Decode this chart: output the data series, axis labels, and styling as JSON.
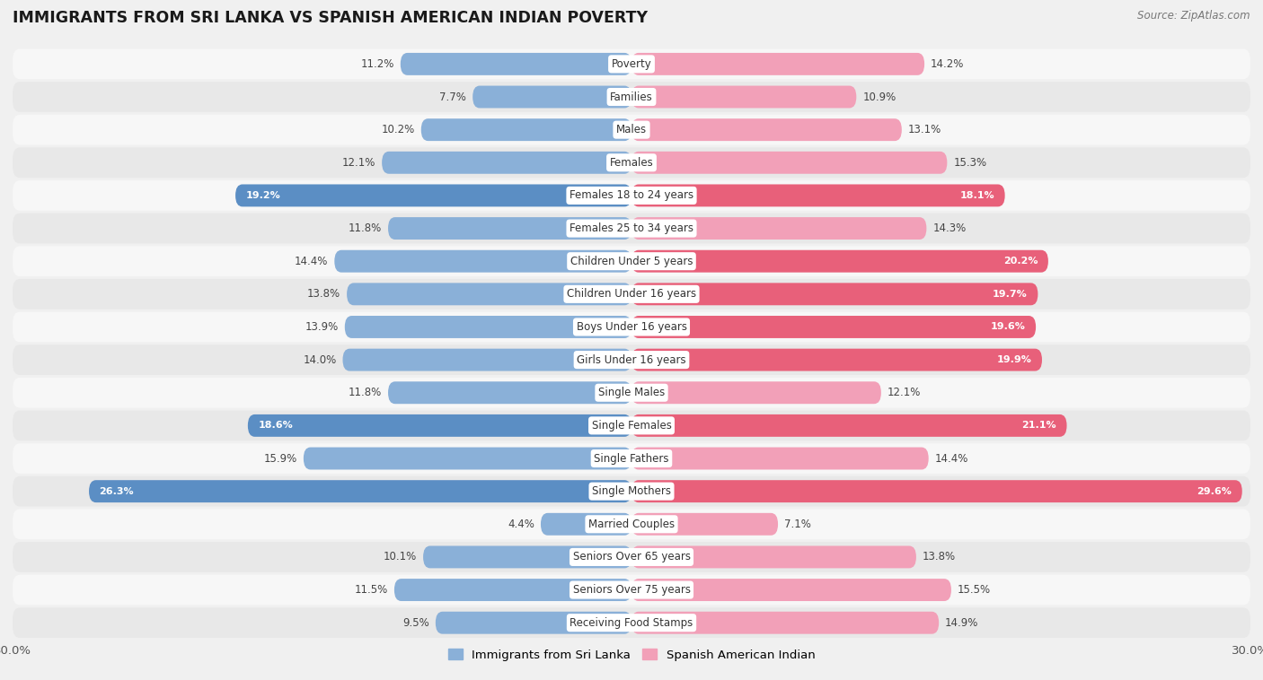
{
  "title": "IMMIGRANTS FROM SRI LANKA VS SPANISH AMERICAN INDIAN POVERTY",
  "source": "Source: ZipAtlas.com",
  "categories": [
    "Poverty",
    "Families",
    "Males",
    "Females",
    "Females 18 to 24 years",
    "Females 25 to 34 years",
    "Children Under 5 years",
    "Children Under 16 years",
    "Boys Under 16 years",
    "Girls Under 16 years",
    "Single Males",
    "Single Females",
    "Single Fathers",
    "Single Mothers",
    "Married Couples",
    "Seniors Over 65 years",
    "Seniors Over 75 years",
    "Receiving Food Stamps"
  ],
  "sri_lanka": [
    11.2,
    7.7,
    10.2,
    12.1,
    19.2,
    11.8,
    14.4,
    13.8,
    13.9,
    14.0,
    11.8,
    18.6,
    15.9,
    26.3,
    4.4,
    10.1,
    11.5,
    9.5
  ],
  "spanish": [
    14.2,
    10.9,
    13.1,
    15.3,
    18.1,
    14.3,
    20.2,
    19.7,
    19.6,
    19.9,
    12.1,
    21.1,
    14.4,
    29.6,
    7.1,
    13.8,
    15.5,
    14.9
  ],
  "sri_lanka_color": "#8ab0d8",
  "spanish_color": "#f2a0b8",
  "sri_lanka_highlight_color": "#5b8ec4",
  "spanish_highlight_color": "#e8607a",
  "background_color": "#f0f0f0",
  "row_bg_light": "#f7f7f7",
  "row_bg_dark": "#e8e8e8",
  "max_val": 30.0,
  "legend_sri_lanka": "Immigrants from Sri Lanka",
  "legend_spanish": "Spanish American Indian",
  "sri_highlight_indices": [
    4,
    11,
    13
  ],
  "spanish_highlight_indices": [
    4,
    6,
    7,
    8,
    9,
    11,
    13
  ]
}
